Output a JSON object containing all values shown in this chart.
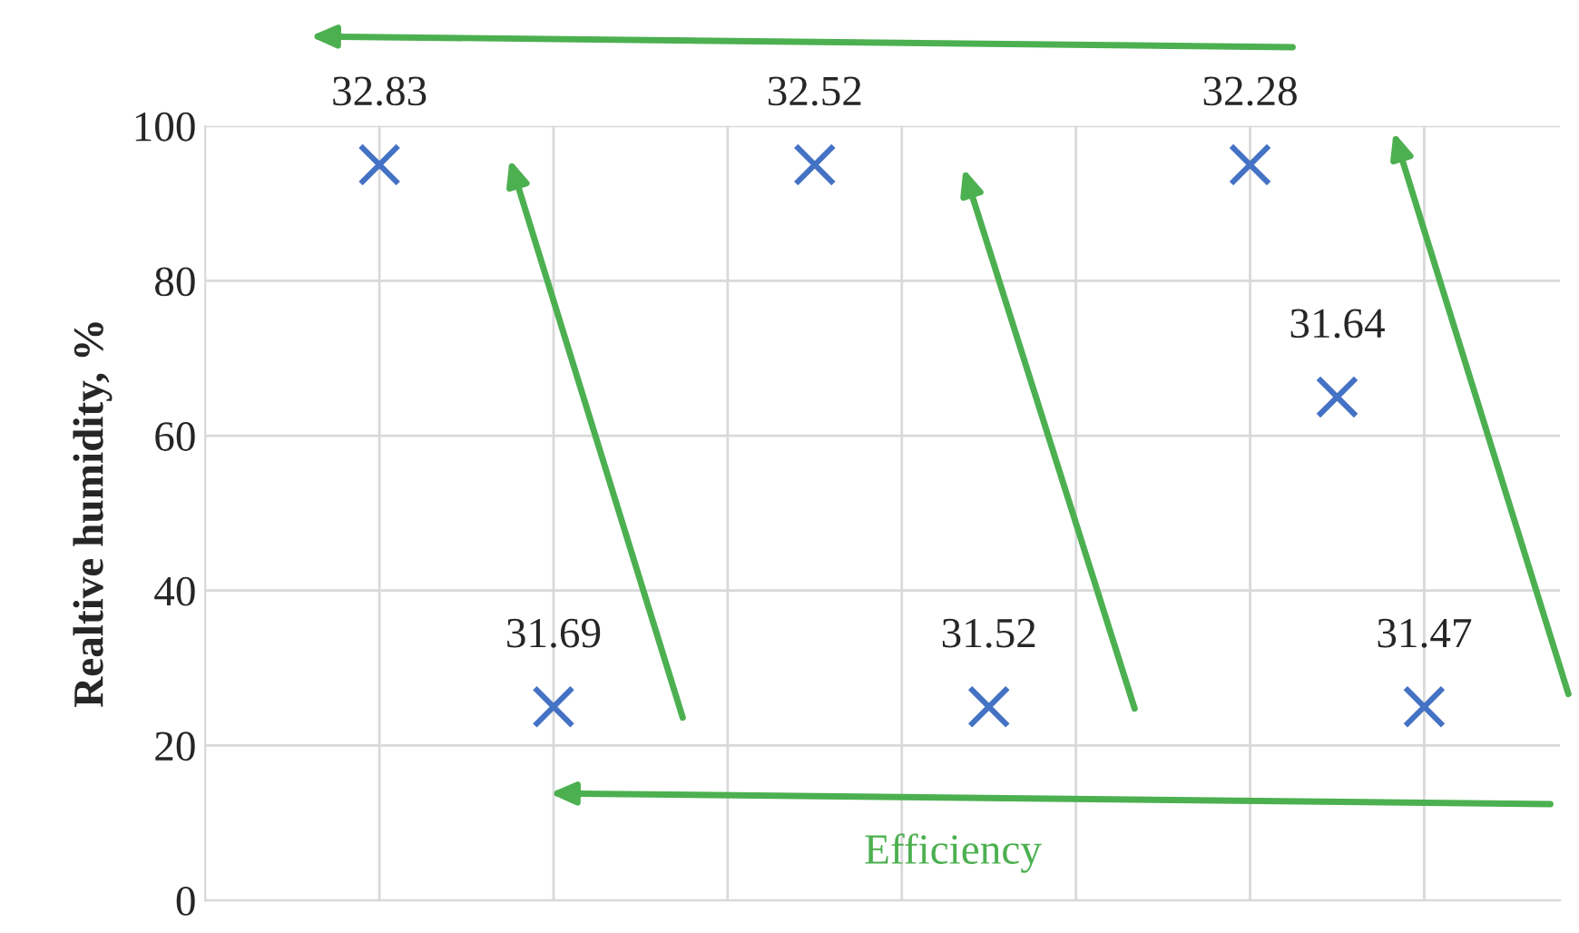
{
  "chart_data": {
    "type": "scatter",
    "ylabel": "Realtive humidity, %",
    "categories": [
      null,
      null,
      null,
      null,
      null,
      null,
      null,
      null,
      null,
      null,
      null,
      null,
      null,
      null,
      null
    ],
    "series": [
      {
        "color": "#4472c4",
        "values": [
          null,
          95,
          null,
          25,
          null,
          null,
          95,
          null,
          25,
          null,
          null,
          95,
          65,
          25,
          null
        ]
      }
    ],
    "ylim": [
      0,
      100
    ],
    "yticks": [
      0,
      20,
      40,
      60,
      80,
      100
    ],
    "tick_labels": "y",
    "grid": true,
    "marker": "cross",
    "annotations": [
      {
        "text": "32.83",
        "y": 95
      },
      {
        "text": "31.69",
        "y": 25
      },
      {
        "text": "32.52",
        "y": 95
      },
      {
        "text": "31.52",
        "y": 25
      },
      {
        "text": "32.28",
        "y": 95
      },
      {
        "text": "31.64",
        "y": 65
      },
      {
        "text": "31.47",
        "y": 25
      },
      "Efficiency"
    ]
  }
}
